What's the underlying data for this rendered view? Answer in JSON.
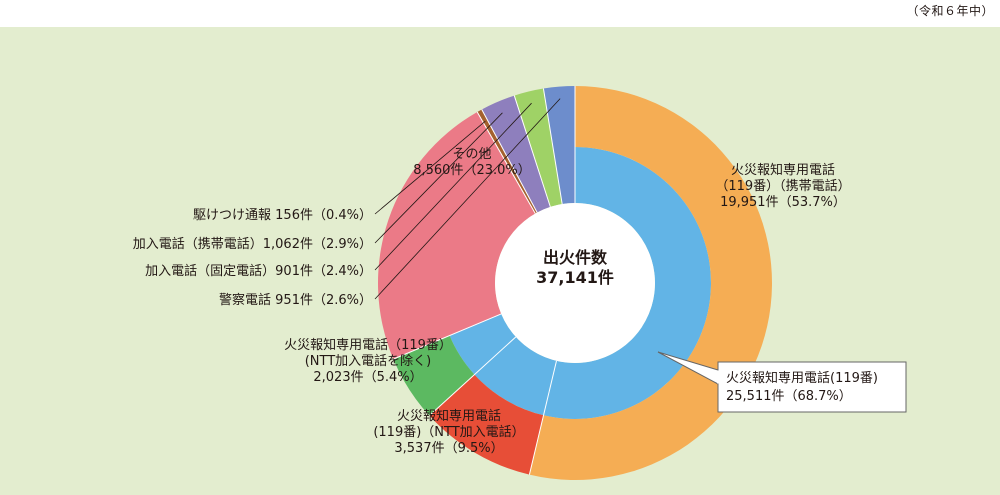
{
  "note": "（令和６年中）",
  "colors": {
    "panel_bg": "#e3edcf",
    "center_bg": "#ffffff",
    "leader": "#231815",
    "callout_border": "#666666"
  },
  "chart_data": {
    "type": "pie",
    "title": "",
    "center_label": [
      "出火件数",
      "37,141件"
    ],
    "total": 37141,
    "inner_ring": {
      "name": "",
      "slices": [
        {
          "key": "119",
          "value": 25511,
          "percent": 68.7,
          "color": "#62b4e6",
          "label": [
            "火災報知専用電話(119番)",
            "25,511件（68.7%）"
          ]
        },
        {
          "key": "other",
          "value": 8560,
          "percent": 23.0,
          "color": "#eb7a87",
          "label": [
            "その他",
            "8,560件（23.0%）"
          ]
        },
        {
          "key": "kaketsuke",
          "value": 156,
          "percent": 0.4,
          "color": "#a4612e",
          "label": [
            "駆けつけ通報 156件（0.4%）"
          ]
        },
        {
          "key": "keitai",
          "value": 1062,
          "percent": 2.9,
          "color": "#8e7fbd",
          "label": [
            "加入電話（携帯電話）1,062件（2.9%）"
          ]
        },
        {
          "key": "kotei",
          "value": 901,
          "percent": 2.4,
          "color": "#9fd266",
          "label": [
            "加入電話（固定電話）901件（2.4%）"
          ]
        },
        {
          "key": "keisatsu",
          "value": 951,
          "percent": 2.6,
          "color": "#6d8dcc",
          "label": [
            "警察電話 951件（2.6%）"
          ]
        }
      ]
    },
    "outer_ring": {
      "name": "",
      "slices": [
        {
          "key": "119_keitai",
          "value": 19951,
          "percent": 53.7,
          "color": "#f5ad54",
          "label": [
            "火災報知専用電話",
            "（119番）（携帯電話）",
            "19,951件（53.7%）"
          ]
        },
        {
          "key": "119_ntt",
          "value": 3537,
          "percent": 9.5,
          "color": "#e74e37",
          "label": [
            "火災報知専用電話",
            "(119番)（NTT加入電話）",
            "3,537件（9.5%）"
          ]
        },
        {
          "key": "119_nonntt",
          "value": 2023,
          "percent": 5.4,
          "color": "#5cb961",
          "label": [
            "火災報知専用電話（119番）",
            "(NTT加入電話を除く)",
            "2,023件（5.4%）"
          ]
        }
      ]
    }
  }
}
